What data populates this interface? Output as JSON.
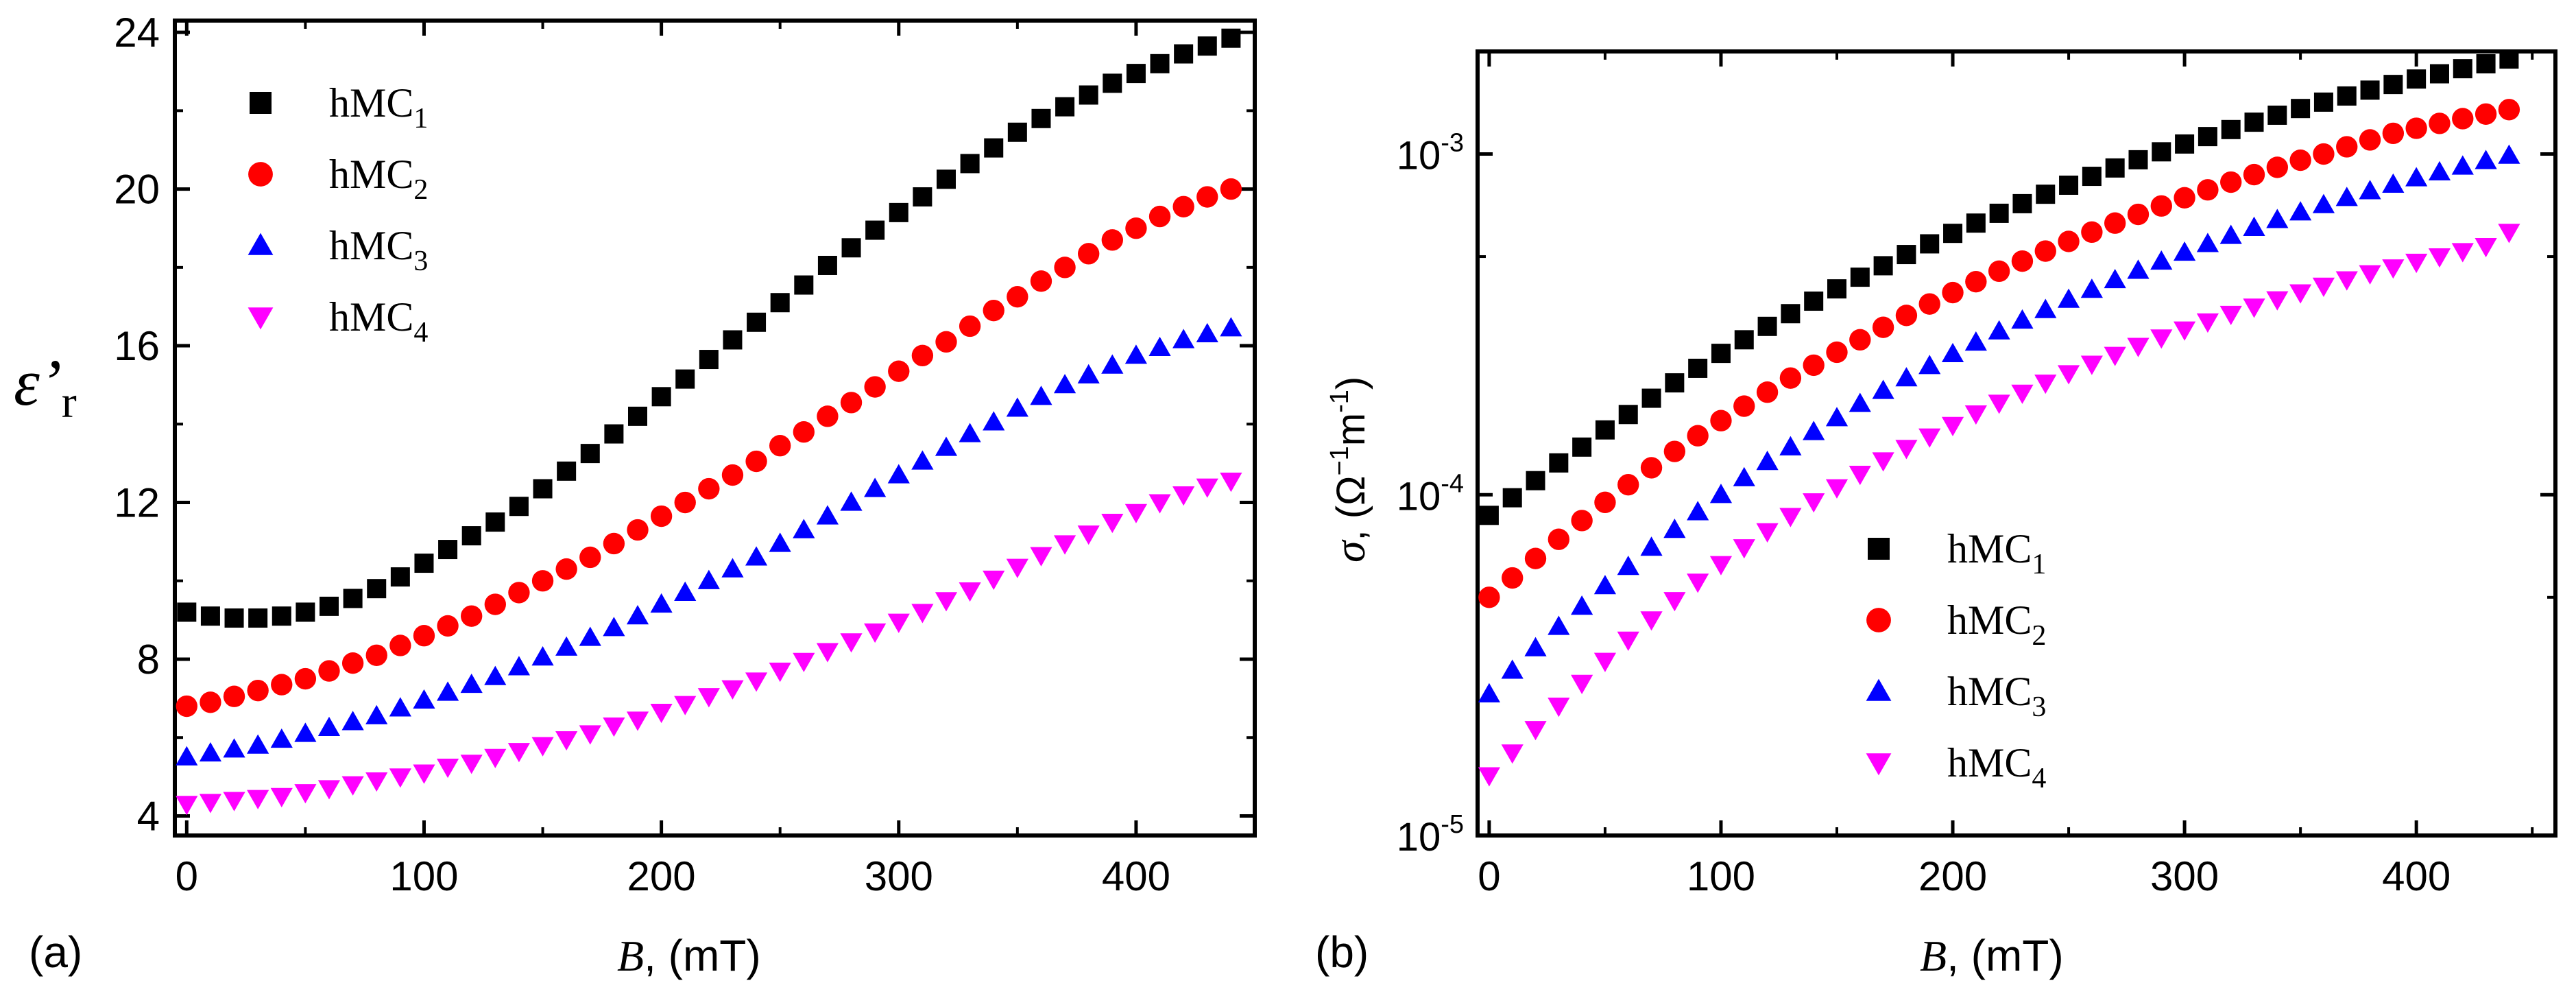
{
  "chart_data": [
    {
      "type": "scatter",
      "panel": "(a)",
      "ylabel_symbol": "ε",
      "ylabel_prime": "’",
      "ylabel_sub": "r",
      "xlabel_var": "B",
      "xlabel_unit": ", (mT)",
      "xlim": [
        -5,
        450
      ],
      "ylim": [
        3.5,
        24.3
      ],
      "yscale": "linear",
      "xticks": [
        0,
        100,
        200,
        300,
        400
      ],
      "xtick_labels": [
        "0",
        "100",
        "200",
        "300",
        "400"
      ],
      "yticks": [
        4,
        8,
        12,
        16,
        20,
        24
      ],
      "ytick_labels": [
        "4",
        "8",
        "12",
        "16",
        "20",
        "24"
      ],
      "legend_position": "top-left",
      "series": [
        {
          "name": "hMC",
          "sub": "1",
          "marker": "square",
          "color": "#000000",
          "x": [
            0,
            10,
            20,
            30,
            40,
            50,
            60,
            70,
            80,
            90,
            100,
            110,
            120,
            130,
            140,
            150,
            160,
            170,
            180,
            190,
            200,
            210,
            220,
            230,
            240,
            250,
            260,
            270,
            280,
            290,
            300,
            310,
            320,
            330,
            340,
            350,
            360,
            370,
            380,
            390,
            400,
            410,
            420,
            430,
            440
          ],
          "y": [
            9.2,
            9.1,
            9.05,
            9.05,
            9.1,
            9.2,
            9.35,
            9.55,
            9.8,
            10.1,
            10.45,
            10.8,
            11.15,
            11.5,
            11.9,
            12.35,
            12.8,
            13.25,
            13.75,
            14.2,
            14.7,
            15.15,
            15.65,
            16.15,
            16.6,
            17.1,
            17.55,
            18.05,
            18.5,
            18.95,
            19.4,
            19.8,
            20.25,
            20.65,
            21.05,
            21.45,
            21.8,
            22.1,
            22.4,
            22.7,
            22.95,
            23.2,
            23.45,
            23.65,
            23.85
          ]
        },
        {
          "name": "hMC",
          "sub": "2",
          "marker": "circle",
          "color": "#ff0000",
          "x": [
            0,
            10,
            20,
            30,
            40,
            50,
            60,
            70,
            80,
            90,
            100,
            110,
            120,
            130,
            140,
            150,
            160,
            170,
            180,
            190,
            200,
            210,
            220,
            230,
            240,
            250,
            260,
            270,
            280,
            290,
            300,
            310,
            320,
            330,
            340,
            350,
            360,
            370,
            380,
            390,
            400,
            410,
            420,
            430,
            440
          ],
          "y": [
            6.8,
            6.9,
            7.05,
            7.2,
            7.35,
            7.5,
            7.7,
            7.9,
            8.1,
            8.35,
            8.6,
            8.85,
            9.1,
            9.4,
            9.7,
            10.0,
            10.3,
            10.6,
            10.95,
            11.3,
            11.65,
            12.0,
            12.35,
            12.7,
            13.05,
            13.45,
            13.8,
            14.2,
            14.55,
            14.95,
            15.35,
            15.75,
            16.1,
            16.5,
            16.9,
            17.25,
            17.65,
            18.0,
            18.35,
            18.7,
            19.0,
            19.3,
            19.55,
            19.8,
            20.0
          ]
        },
        {
          "name": "hMC",
          "sub": "3",
          "marker": "triangle-up",
          "color": "#0000ff",
          "x": [
            0,
            10,
            20,
            30,
            40,
            50,
            60,
            70,
            80,
            90,
            100,
            110,
            120,
            130,
            140,
            150,
            160,
            170,
            180,
            190,
            200,
            210,
            220,
            230,
            240,
            250,
            260,
            270,
            280,
            290,
            300,
            310,
            320,
            330,
            340,
            350,
            360,
            370,
            380,
            390,
            400,
            410,
            420,
            430,
            440
          ],
          "y": [
            5.5,
            5.6,
            5.7,
            5.8,
            5.95,
            6.1,
            6.25,
            6.4,
            6.55,
            6.75,
            6.95,
            7.15,
            7.35,
            7.55,
            7.8,
            8.05,
            8.3,
            8.55,
            8.8,
            9.1,
            9.4,
            9.7,
            10.0,
            10.3,
            10.6,
            10.95,
            11.3,
            11.65,
            12.0,
            12.35,
            12.7,
            13.05,
            13.4,
            13.75,
            14.05,
            14.4,
            14.7,
            15.0,
            15.25,
            15.5,
            15.75,
            15.95,
            16.15,
            16.3,
            16.45
          ]
        },
        {
          "name": "hMC",
          "sub": "4",
          "marker": "triangle-down",
          "color": "#ff00ff",
          "x": [
            0,
            10,
            20,
            30,
            40,
            50,
            60,
            70,
            80,
            90,
            100,
            110,
            120,
            130,
            140,
            150,
            160,
            170,
            180,
            190,
            200,
            210,
            220,
            230,
            240,
            250,
            260,
            270,
            280,
            290,
            300,
            310,
            320,
            330,
            340,
            350,
            360,
            370,
            380,
            390,
            400,
            410,
            420,
            430,
            440
          ],
          "y": [
            4.3,
            4.35,
            4.4,
            4.45,
            4.5,
            4.6,
            4.7,
            4.8,
            4.9,
            5.0,
            5.1,
            5.25,
            5.35,
            5.5,
            5.65,
            5.8,
            5.95,
            6.1,
            6.3,
            6.45,
            6.65,
            6.85,
            7.05,
            7.25,
            7.45,
            7.7,
            7.95,
            8.2,
            8.45,
            8.7,
            8.95,
            9.2,
            9.5,
            9.75,
            10.05,
            10.35,
            10.65,
            10.95,
            11.2,
            11.5,
            11.75,
            12.0,
            12.2,
            12.4,
            12.55
          ]
        }
      ]
    },
    {
      "type": "scatter",
      "panel": "(b)",
      "ylabel_symbol": "σ",
      "ylabel_unit_pre": ", (Ω",
      "ylabel_exp1": "−1",
      "ylabel_m": "m",
      "ylabel_exp2": "-1",
      "ylabel_close": ")",
      "xlabel_var": "B",
      "xlabel_unit": ", (mT)",
      "xlim": [
        -5,
        460
      ],
      "ylim": [
        1e-05,
        0.002
      ],
      "yscale": "log",
      "xticks": [
        0,
        100,
        200,
        300,
        400
      ],
      "xtick_labels": [
        "0",
        "100",
        "200",
        "300",
        "400"
      ],
      "yticks": [
        1e-05,
        0.0001,
        0.001
      ],
      "ytick_base": [
        "10",
        "10",
        "10"
      ],
      "ytick_exp": [
        "-5",
        "-4",
        "-3"
      ],
      "legend_position": "bottom-right",
      "series": [
        {
          "name": "hMC",
          "sub": "1",
          "marker": "square",
          "color": "#000000",
          "x": [
            0,
            10,
            20,
            30,
            40,
            50,
            60,
            70,
            80,
            90,
            100,
            110,
            120,
            130,
            140,
            150,
            160,
            170,
            180,
            190,
            200,
            210,
            220,
            230,
            240,
            250,
            260,
            270,
            280,
            290,
            300,
            310,
            320,
            330,
            340,
            350,
            360,
            370,
            380,
            390,
            400,
            410,
            420,
            430,
            440
          ],
          "y": [
            8.7e-05,
            9.8e-05,
            0.00011,
            0.000124,
            0.000138,
            0.000155,
            0.000172,
            0.000192,
            0.000213,
            0.000235,
            0.00026,
            0.000285,
            0.000312,
            0.00034,
            0.00037,
            0.000402,
            0.000435,
            0.00047,
            0.000507,
            0.000545,
            0.000585,
            0.000627,
            0.00067,
            0.000715,
            0.000762,
            0.00081,
            0.00086,
            0.00091,
            0.000962,
            0.001015,
            0.00107,
            0.001125,
            0.00118,
            0.00124,
            0.0013,
            0.00136,
            0.00142,
            0.00148,
            0.00154,
            0.0016,
            0.00166,
            0.00172,
            0.00178,
            0.00184,
            0.0019
          ]
        },
        {
          "name": "hMC",
          "sub": "2",
          "marker": "circle",
          "color": "#ff0000",
          "x": [
            0,
            10,
            20,
            30,
            40,
            50,
            60,
            70,
            80,
            90,
            100,
            110,
            120,
            130,
            140,
            150,
            160,
            170,
            180,
            190,
            200,
            210,
            220,
            230,
            240,
            250,
            260,
            270,
            280,
            290,
            300,
            310,
            320,
            330,
            340,
            350,
            360,
            370,
            380,
            390,
            400,
            410,
            420,
            430,
            440
          ],
          "y": [
            5e-05,
            5.7e-05,
            6.5e-05,
            7.4e-05,
            8.4e-05,
            9.5e-05,
            0.000107,
            0.00012,
            0.000134,
            0.000149,
            0.000165,
            0.000182,
            0.0002,
            0.00022,
            0.00024,
            0.000262,
            0.000285,
            0.00031,
            0.000336,
            0.000363,
            0.000392,
            0.000422,
            0.000453,
            0.000485,
            0.000519,
            0.000554,
            0.00059,
            0.000627,
            0.000665,
            0.000704,
            0.000744,
            0.000785,
            0.000827,
            0.00087,
            0.000914,
            0.000959,
            0.001,
            0.00105,
            0.0011,
            0.00115,
            0.00119,
            0.00123,
            0.00127,
            0.00131,
            0.00135
          ]
        },
        {
          "name": "hMC",
          "sub": "3",
          "marker": "triangle-up",
          "color": "#0000ff",
          "x": [
            0,
            10,
            20,
            30,
            40,
            50,
            60,
            70,
            80,
            90,
            100,
            110,
            120,
            130,
            140,
            150,
            160,
            170,
            180,
            190,
            200,
            210,
            220,
            230,
            240,
            250,
            260,
            270,
            280,
            290,
            300,
            310,
            320,
            330,
            340,
            350,
            360,
            370,
            380,
            390,
            400,
            410,
            420,
            430,
            440
          ],
          "y": [
            2.6e-05,
            3.05e-05,
            3.55e-05,
            4.1e-05,
            4.7e-05,
            5.4e-05,
            6.15e-05,
            7e-05,
            7.9e-05,
            8.9e-05,
            0.0001,
            0.000112,
            0.000125,
            0.000138,
            0.000153,
            0.000168,
            0.000185,
            0.000202,
            0.00022,
            0.000239,
            0.000259,
            0.00028,
            0.000302,
            0.000325,
            0.000349,
            0.000374,
            0.0004,
            0.000427,
            0.000455,
            0.000484,
            0.000514,
            0.000545,
            0.000576,
            0.000608,
            0.000641,
            0.000675,
            0.000709,
            0.000744,
            0.000779,
            0.000814,
            0.00085,
            0.000885,
            0.00092,
            0.000955,
            0.00099
          ]
        },
        {
          "name": "hMC",
          "sub": "4",
          "marker": "triangle-down",
          "color": "#ff00ff",
          "x": [
            0,
            10,
            20,
            30,
            40,
            50,
            60,
            70,
            80,
            90,
            100,
            110,
            120,
            130,
            140,
            150,
            160,
            170,
            180,
            190,
            200,
            210,
            220,
            230,
            240,
            250,
            260,
            270,
            280,
            290,
            300,
            310,
            320,
            330,
            340,
            350,
            360,
            370,
            380,
            390,
            400,
            410,
            420,
            430,
            440
          ],
          "y": [
            1.5e-05,
            1.75e-05,
            2.05e-05,
            2.4e-05,
            2.8e-05,
            3.25e-05,
            3.75e-05,
            4.3e-05,
            4.9e-05,
            5.55e-05,
            6.25e-05,
            7e-05,
            7.8e-05,
            8.65e-05,
            9.55e-05,
            0.000105,
            0.000115,
            0.000126,
            0.000137,
            0.000148,
            0.00016,
            0.000173,
            0.000186,
            0.000199,
            0.000213,
            0.000227,
            0.000242,
            0.000257,
            0.000273,
            0.000289,
            0.000305,
            0.000322,
            0.000339,
            0.000356,
            0.000374,
            0.000392,
            0.00041,
            0.000428,
            0.000446,
            0.000464,
            0.000482,
            0.0005,
            0.000518,
            0.000536,
            0.00059
          ]
        }
      ]
    }
  ]
}
